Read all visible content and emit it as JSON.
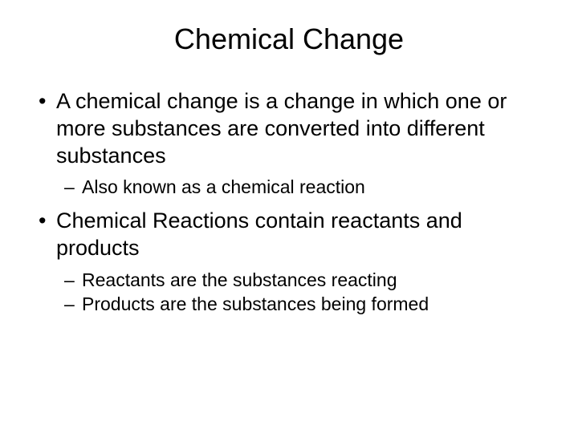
{
  "title": "Chemical Change",
  "bullets": [
    {
      "text": "A chemical change is a change in which one or more substances are converted into different substances",
      "subs": [
        "Also known as a chemical reaction"
      ]
    },
    {
      "text": "Chemical Reactions contain reactants and products",
      "subs": [
        "Reactants are the substances reacting",
        "Products are the substances being formed"
      ]
    }
  ],
  "colors": {
    "background": "#ffffff",
    "text": "#000000"
  },
  "typography": {
    "title_fontsize": 36,
    "bullet_fontsize": 27,
    "sub_fontsize": 23,
    "font_family": "Arial"
  }
}
